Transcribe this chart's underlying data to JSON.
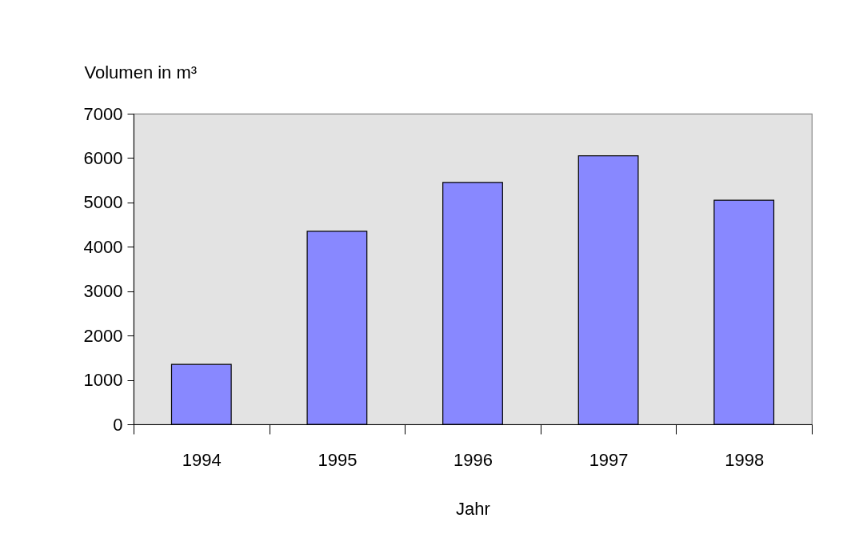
{
  "chart_data": {
    "type": "bar",
    "ylabel": "Volumen in m³",
    "xlabel": "Jahr",
    "categories": [
      "1994",
      "1995",
      "1996",
      "1997",
      "1998"
    ],
    "values": [
      1350,
      4350,
      5450,
      6050,
      5050
    ],
    "color": "#8888ff",
    "ylim": [
      0,
      7000
    ],
    "yticks": [
      0,
      1000,
      2000,
      3000,
      4000,
      5000,
      6000,
      7000
    ],
    "grid": false,
    "legend": false
  }
}
